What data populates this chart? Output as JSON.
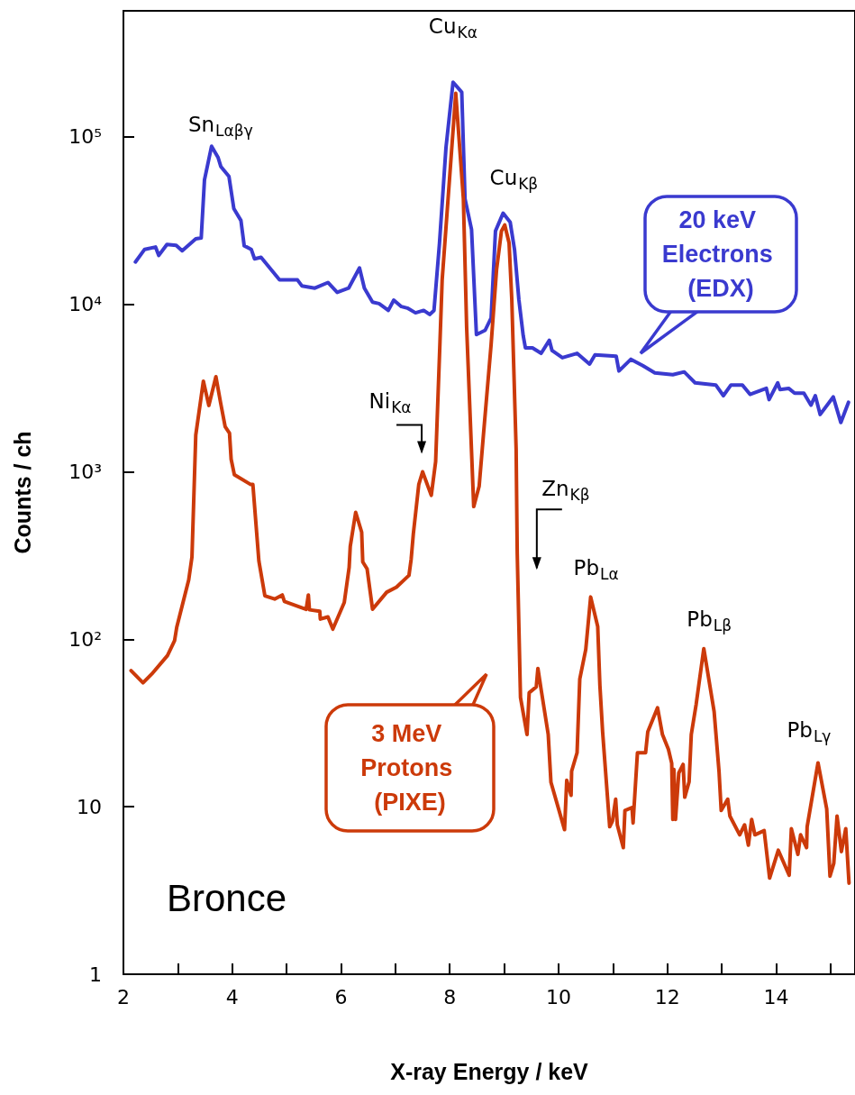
{
  "chart_data": {
    "type": "line",
    "xlabel": "X-ray Energy / keV",
    "ylabel": "Counts / ch",
    "log": true,
    "grid": false,
    "legend": "bottom left",
    "marker": "none",
    "line_style": "solid",
    "xlim": [
      2,
      15.45
    ],
    "xticks": [
      2,
      {
        "value": 3,
        "label": null
      },
      4,
      {
        "value": 5,
        "label": null
      },
      6,
      {
        "value": 7,
        "label": null
      },
      8,
      {
        "value": 9,
        "label": null
      },
      10,
      {
        "value": 11,
        "label": null
      },
      12,
      {
        "value": 13,
        "label": null
      },
      14,
      {
        "value": 15,
        "label": null
      }
    ],
    "ylim": [
      1,
      566000
    ],
    "yticks": [
      1,
      10,
      {
        "value": 100,
        "label": "10²"
      },
      {
        "value": 1000,
        "label": "10³"
      },
      {
        "value": 10000,
        "label": "10⁴"
      },
      {
        "value": 100000,
        "label": "10⁵"
      }
    ],
    "annotations": [
      {
        "text": "Sn$_{Lαβγ}$",
        "x": 3.62,
        "y": 87900
      },
      {
        "text": "Cu$_{Kα}$",
        "x": 8.06,
        "y": 212000
      },
      {
        "text": "Cu$_{Kβ}$",
        "x": 8.98,
        "y": 35000
      },
      {
        "text": "Ni$_{Kα}$",
        "x": 7.5,
        "y": 1000
      },
      "Zn$_{Kβ}$",
      {
        "text": "Pb$_{Lα}$",
        "x": 10.59,
        "y": 179
      },
      {
        "text": "Pb$_{Lβ}$",
        "x": 12.67,
        "y": 88
      },
      {
        "text": "Pb$_{Lγ}$",
        "x": 14.77,
        "y": 18.3
      },
      "Bronce"
    ],
    "series": [
      {
        "name": "20 keV Electrons (EDX)",
        "color": "#3a3acf",
        "x": [
          2.22,
          2.39,
          2.59,
          2.65,
          2.8,
          2.97,
          3.08,
          3.33,
          3.43,
          3.49,
          3.62,
          3.74,
          3.79,
          3.94,
          4.03,
          4.16,
          4.22,
          4.35,
          4.41,
          4.53,
          4.87,
          5.2,
          5.28,
          5.52,
          5.76,
          5.93,
          6.14,
          6.34,
          6.43,
          6.58,
          6.7,
          6.87,
          6.97,
          7.11,
          7.22,
          7.37,
          7.52,
          7.63,
          7.71,
          7.81,
          7.93,
          8.06,
          8.22,
          8.28,
          8.4,
          8.49,
          8.65,
          8.76,
          8.84,
          8.98,
          9.11,
          9.19,
          9.27,
          9.35,
          9.39,
          9.52,
          9.68,
          9.83,
          9.88,
          10.07,
          10.34,
          10.57,
          10.67,
          11.06,
          11.11,
          11.33,
          11.55,
          11.77,
          12.1,
          12.31,
          12.51,
          12.89,
          13.03,
          13.17,
          13.38,
          13.52,
          13.82,
          13.87,
          14.03,
          14.07,
          14.23,
          14.34,
          14.51,
          14.64,
          14.72,
          14.81,
          15.05,
          15.19,
          15.33
        ],
        "values": [
          17900,
          21300,
          22000,
          19600,
          22800,
          22500,
          20900,
          24600,
          24900,
          55400,
          87900,
          75300,
          66600,
          58100,
          37300,
          31700,
          22400,
          21300,
          18700,
          19100,
          14000,
          14000,
          12900,
          12500,
          13500,
          11800,
          12500,
          16500,
          12500,
          10300,
          10100,
          9200,
          10600,
          9700,
          9500,
          8900,
          9200,
          8700,
          9200,
          23000,
          86200,
          212000,
          185000,
          42700,
          28000,
          6600,
          7000,
          8300,
          27400,
          35000,
          31000,
          21300,
          10700,
          6500,
          5500,
          5500,
          5100,
          6100,
          5300,
          4800,
          5100,
          4400,
          5000,
          4900,
          4000,
          4700,
          4300,
          3900,
          3800,
          3950,
          3400,
          3300,
          2850,
          3300,
          3300,
          2900,
          3150,
          2700,
          3400,
          3100,
          3150,
          2950,
          2950,
          2500,
          2850,
          2200,
          2800,
          1970,
          2600
        ]
      },
      {
        "name": "3 MeV Protons (PIXE)",
        "color": "#cc3a0a",
        "x": [
          2.14,
          2.36,
          2.52,
          2.81,
          2.94,
          2.98,
          3.2,
          3.26,
          3.33,
          3.47,
          3.57,
          3.7,
          3.79,
          3.87,
          3.95,
          3.98,
          4.04,
          4.34,
          4.38,
          4.49,
          4.6,
          4.78,
          4.92,
          4.96,
          5.36,
          5.4,
          5.42,
          5.61,
          5.62,
          5.76,
          5.85,
          6.06,
          6.15,
          6.17,
          6.27,
          6.38,
          6.4,
          6.48,
          6.58,
          6.84,
          7.02,
          7.25,
          7.29,
          7.33,
          7.43,
          7.5,
          7.66,
          7.74,
          7.82,
          7.86,
          8.11,
          8.25,
          8.31,
          8.44,
          8.54,
          8.62,
          8.76,
          8.86,
          8.95,
          9.01,
          9.09,
          9.14,
          9.22,
          9.24,
          9.3,
          9.42,
          9.46,
          9.59,
          9.62,
          9.68,
          9.81,
          9.86,
          10.11,
          10.15,
          10.23,
          10.24,
          10.34,
          10.39,
          10.5,
          10.59,
          10.72,
          10.76,
          10.81,
          10.94,
          10.99,
          11.05,
          11.08,
          11.19,
          11.22,
          11.35,
          11.37,
          11.45,
          11.6,
          11.64,
          11.82,
          11.91,
          12.02,
          12.08,
          12.1,
          12.12,
          12.15,
          12.21,
          12.29,
          12.32,
          12.4,
          12.44,
          12.53,
          12.67,
          12.86,
          12.95,
          12.99,
          13.11,
          13.15,
          13.33,
          13.42,
          13.49,
          13.55,
          13.61,
          13.78,
          13.88,
          14.04,
          14.24,
          14.28,
          14.4,
          14.45,
          14.56,
          14.57,
          14.77,
          14.93,
          14.99,
          15.06,
          15.12,
          15.2,
          15.28,
          15.34
        ],
        "values": [
          65,
          55,
          62,
          80,
          98,
          118,
          226,
          310,
          1660,
          3480,
          2490,
          3700,
          2550,
          1860,
          1700,
          1190,
          960,
          840,
          840,
          294,
          182,
          174,
          184,
          168,
          151,
          184,
          150,
          147,
          132,
          136,
          115,
          166,
          269,
          358,
          573,
          436,
          290,
          263,
          151,
          191,
          205,
          241,
          301,
          426,
          840,
          1000,
          724,
          1150,
          6000,
          14000,
          182000,
          42700,
          7300,
          620,
          820,
          1680,
          5770,
          16100,
          27400,
          29800,
          23300,
          10700,
          1360,
          328,
          45,
          27,
          48,
          52,
          67,
          50,
          27,
          14,
          7.3,
          14.4,
          11.7,
          16.3,
          21,
          58,
          87,
          179,
          119,
          53,
          28,
          7.6,
          8.2,
          11.1,
          7.8,
          5.7,
          9.5,
          9.9,
          8,
          21,
          21,
          28,
          39,
          27,
          22,
          18.2,
          8.4,
          16.7,
          8.4,
          15.9,
          17.9,
          11.4,
          14.1,
          27,
          41,
          88,
          37,
          16.3,
          9.5,
          11.1,
          8.8,
          6.8,
          7.8,
          5.9,
          8.4,
          6.8,
          7.2,
          3.75,
          5.5,
          3.9,
          7.4,
          5.2,
          6.8,
          5.7,
          7.6,
          18.3,
          9.7,
          3.85,
          4.6,
          8.8,
          5.4,
          7.4,
          3.5
        ]
      }
    ]
  }
}
